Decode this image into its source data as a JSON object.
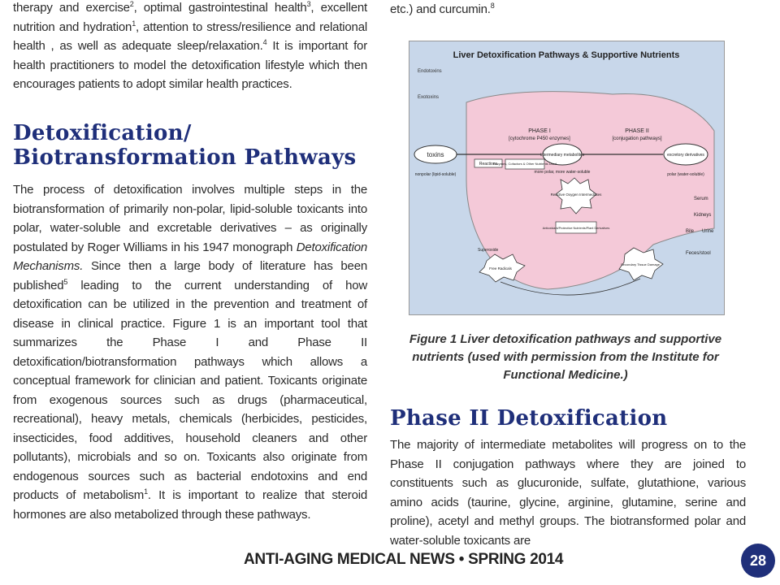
{
  "left_column": {
    "paragraph1": {
      "parts": [
        {
          "t": "therapy and exercise"
        },
        {
          "sup": "2"
        },
        {
          "t": ", optimal gastrointestinal health"
        },
        {
          "sup": "3"
        },
        {
          "t": ", excellent nutrition and hydration"
        },
        {
          "sup": "1"
        },
        {
          "t": ", attention to stress/resilience and relational health , as well as adequate sleep/relaxation."
        },
        {
          "sup": "4"
        },
        {
          "t": " It is important for health practitioners to model the detoxification lifestyle which then encourages patients to adopt similar health practices."
        }
      ]
    },
    "heading_line1": "Detoxification/",
    "heading_line2": "Biotransformation Pathways",
    "paragraph2": {
      "parts": [
        {
          "t": "The process of detoxification involves multiple steps in the biotransformation of primarily non-polar, lipid-soluble toxicants into polar, water-soluble and excretable derivatives – as originally postulated by Roger Williams in his 1947 monograph "
        },
        {
          "em": "Detoxification Mechanisms."
        },
        {
          "t": "  Since then a large body of literature has been published"
        },
        {
          "sup": "5"
        },
        {
          "t": " leading to the current understanding of how detoxification can be utilized in the prevention and treatment of disease in clinical practice.  Figure 1 is an important tool that summarizes the Phase I and Phase II detoxification/biotransformation pathways which allows a conceptual framework for clinician and patient.  Toxicants originate from exogenous sources such as drugs (pharmaceutical, recreational), heavy metals, chemicals (herbicides, pesticides, insecticides, food additives, household cleaners and other pollutants), microbials and so on.  Toxicants also originate from endogenous sources such as bacterial endotoxins and end products of metabolism"
        },
        {
          "sup": "1"
        },
        {
          "t": ".  It is important to realize that steroid hormones are also metabolized through these pathways."
        }
      ]
    }
  },
  "right_column": {
    "paragraph0": {
      "parts": [
        {
          "t": "etc.) and curcumin."
        },
        {
          "sup": "8"
        }
      ]
    },
    "figure": {
      "title": "Liver Detoxification Pathways & Supportive Nutrients",
      "labels": {
        "endotoxins": "Endotoxins",
        "exotoxins": "Exotoxins",
        "phase1": "PHASE I",
        "phase1_sub": "[cytochrome P450 enzymes]",
        "phase2": "PHASE II",
        "phase2_sub": "[conjugation pathways]",
        "toxins": "toxins",
        "intermediary": "intermediary metabolites",
        "excretory": "excretory derivatives",
        "nonpolar": "nonpolar (lipid-soluble)",
        "polar": "polar (water-soluble)",
        "more_polar": "more polar, more water-soluble",
        "reactions": "Reactions",
        "enzymes": "Enzymes, Cofactors & Other Nutrients Used",
        "ros": "Reactive Oxygen Intermediates",
        "antioxidant": "Antioxidant/Protective Nutrients/Plant Derivatives",
        "serum": "Serum",
        "kidneys": "Kidneys",
        "bile": "Bile",
        "urine": "Urine",
        "feces": "Feces/stool",
        "free_radicals": "Free Radicals",
        "secondary": "Secondary Tissue Damage",
        "superoxide": "Superoxide"
      }
    },
    "caption": "Figure 1 Liver detoxification pathways and supportive nutrients (used with permission from the Institute for Functional Medicine.)",
    "heading": "Phase II Detoxification",
    "paragraph3": {
      "parts": [
        {
          "t": "The majority of intermediate metabolites will progress on to the Phase II conjugation pathways where they are joined to constituents such as glucuronide, sulfate, glutathione, various amino acids (taurine, glycine, arginine, glutamine, serine and proline), acetyl and methyl groups.  The biotransformed polar and water-soluble toxicants are"
        }
      ]
    }
  },
  "footer": {
    "publication": "ANTI-AGING MEDICAL NEWS • SPRING 2014",
    "page_number": "28"
  }
}
